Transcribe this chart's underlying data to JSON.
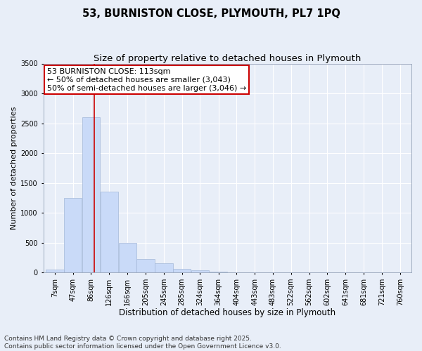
{
  "title_line1": "53, BURNISTON CLOSE, PLYMOUTH, PL7 1PQ",
  "title_line2": "Size of property relative to detached houses in Plymouth",
  "xlabel": "Distribution of detached houses by size in Plymouth",
  "ylabel": "Number of detached properties",
  "bar_edges": [
    7,
    47,
    86,
    126,
    166,
    205,
    245,
    285,
    324,
    364,
    404,
    443,
    483,
    522,
    562,
    602,
    641,
    681,
    721,
    760,
    800
  ],
  "bar_heights": [
    50,
    1250,
    2600,
    1350,
    500,
    220,
    150,
    60,
    40,
    15,
    5,
    3,
    2,
    1,
    1,
    0,
    0,
    0,
    0,
    0
  ],
  "bar_color": "#c9daf8",
  "bar_edgecolor": "#a4b8d8",
  "vline_x": 113,
  "vline_color": "#cc0000",
  "annotation_text": "53 BURNISTON CLOSE: 113sqm\n← 50% of detached houses are smaller (3,043)\n50% of semi-detached houses are larger (3,046) →",
  "annotation_box_facecolor": "#ffffff",
  "annotation_box_edgecolor": "#cc0000",
  "ylim": [
    0,
    3500
  ],
  "yticks": [
    0,
    500,
    1000,
    1500,
    2000,
    2500,
    3000,
    3500
  ],
  "background_color": "#e8eef8",
  "footnote": "Contains HM Land Registry data © Crown copyright and database right 2025.\nContains public sector information licensed under the Open Government Licence v3.0.",
  "title_fontsize": 10.5,
  "subtitle_fontsize": 9.5,
  "tick_label_fontsize": 7,
  "axis_label_fontsize": 8.5,
  "annotation_fontsize": 8,
  "footnote_fontsize": 6.5,
  "ylabel_fontsize": 8
}
